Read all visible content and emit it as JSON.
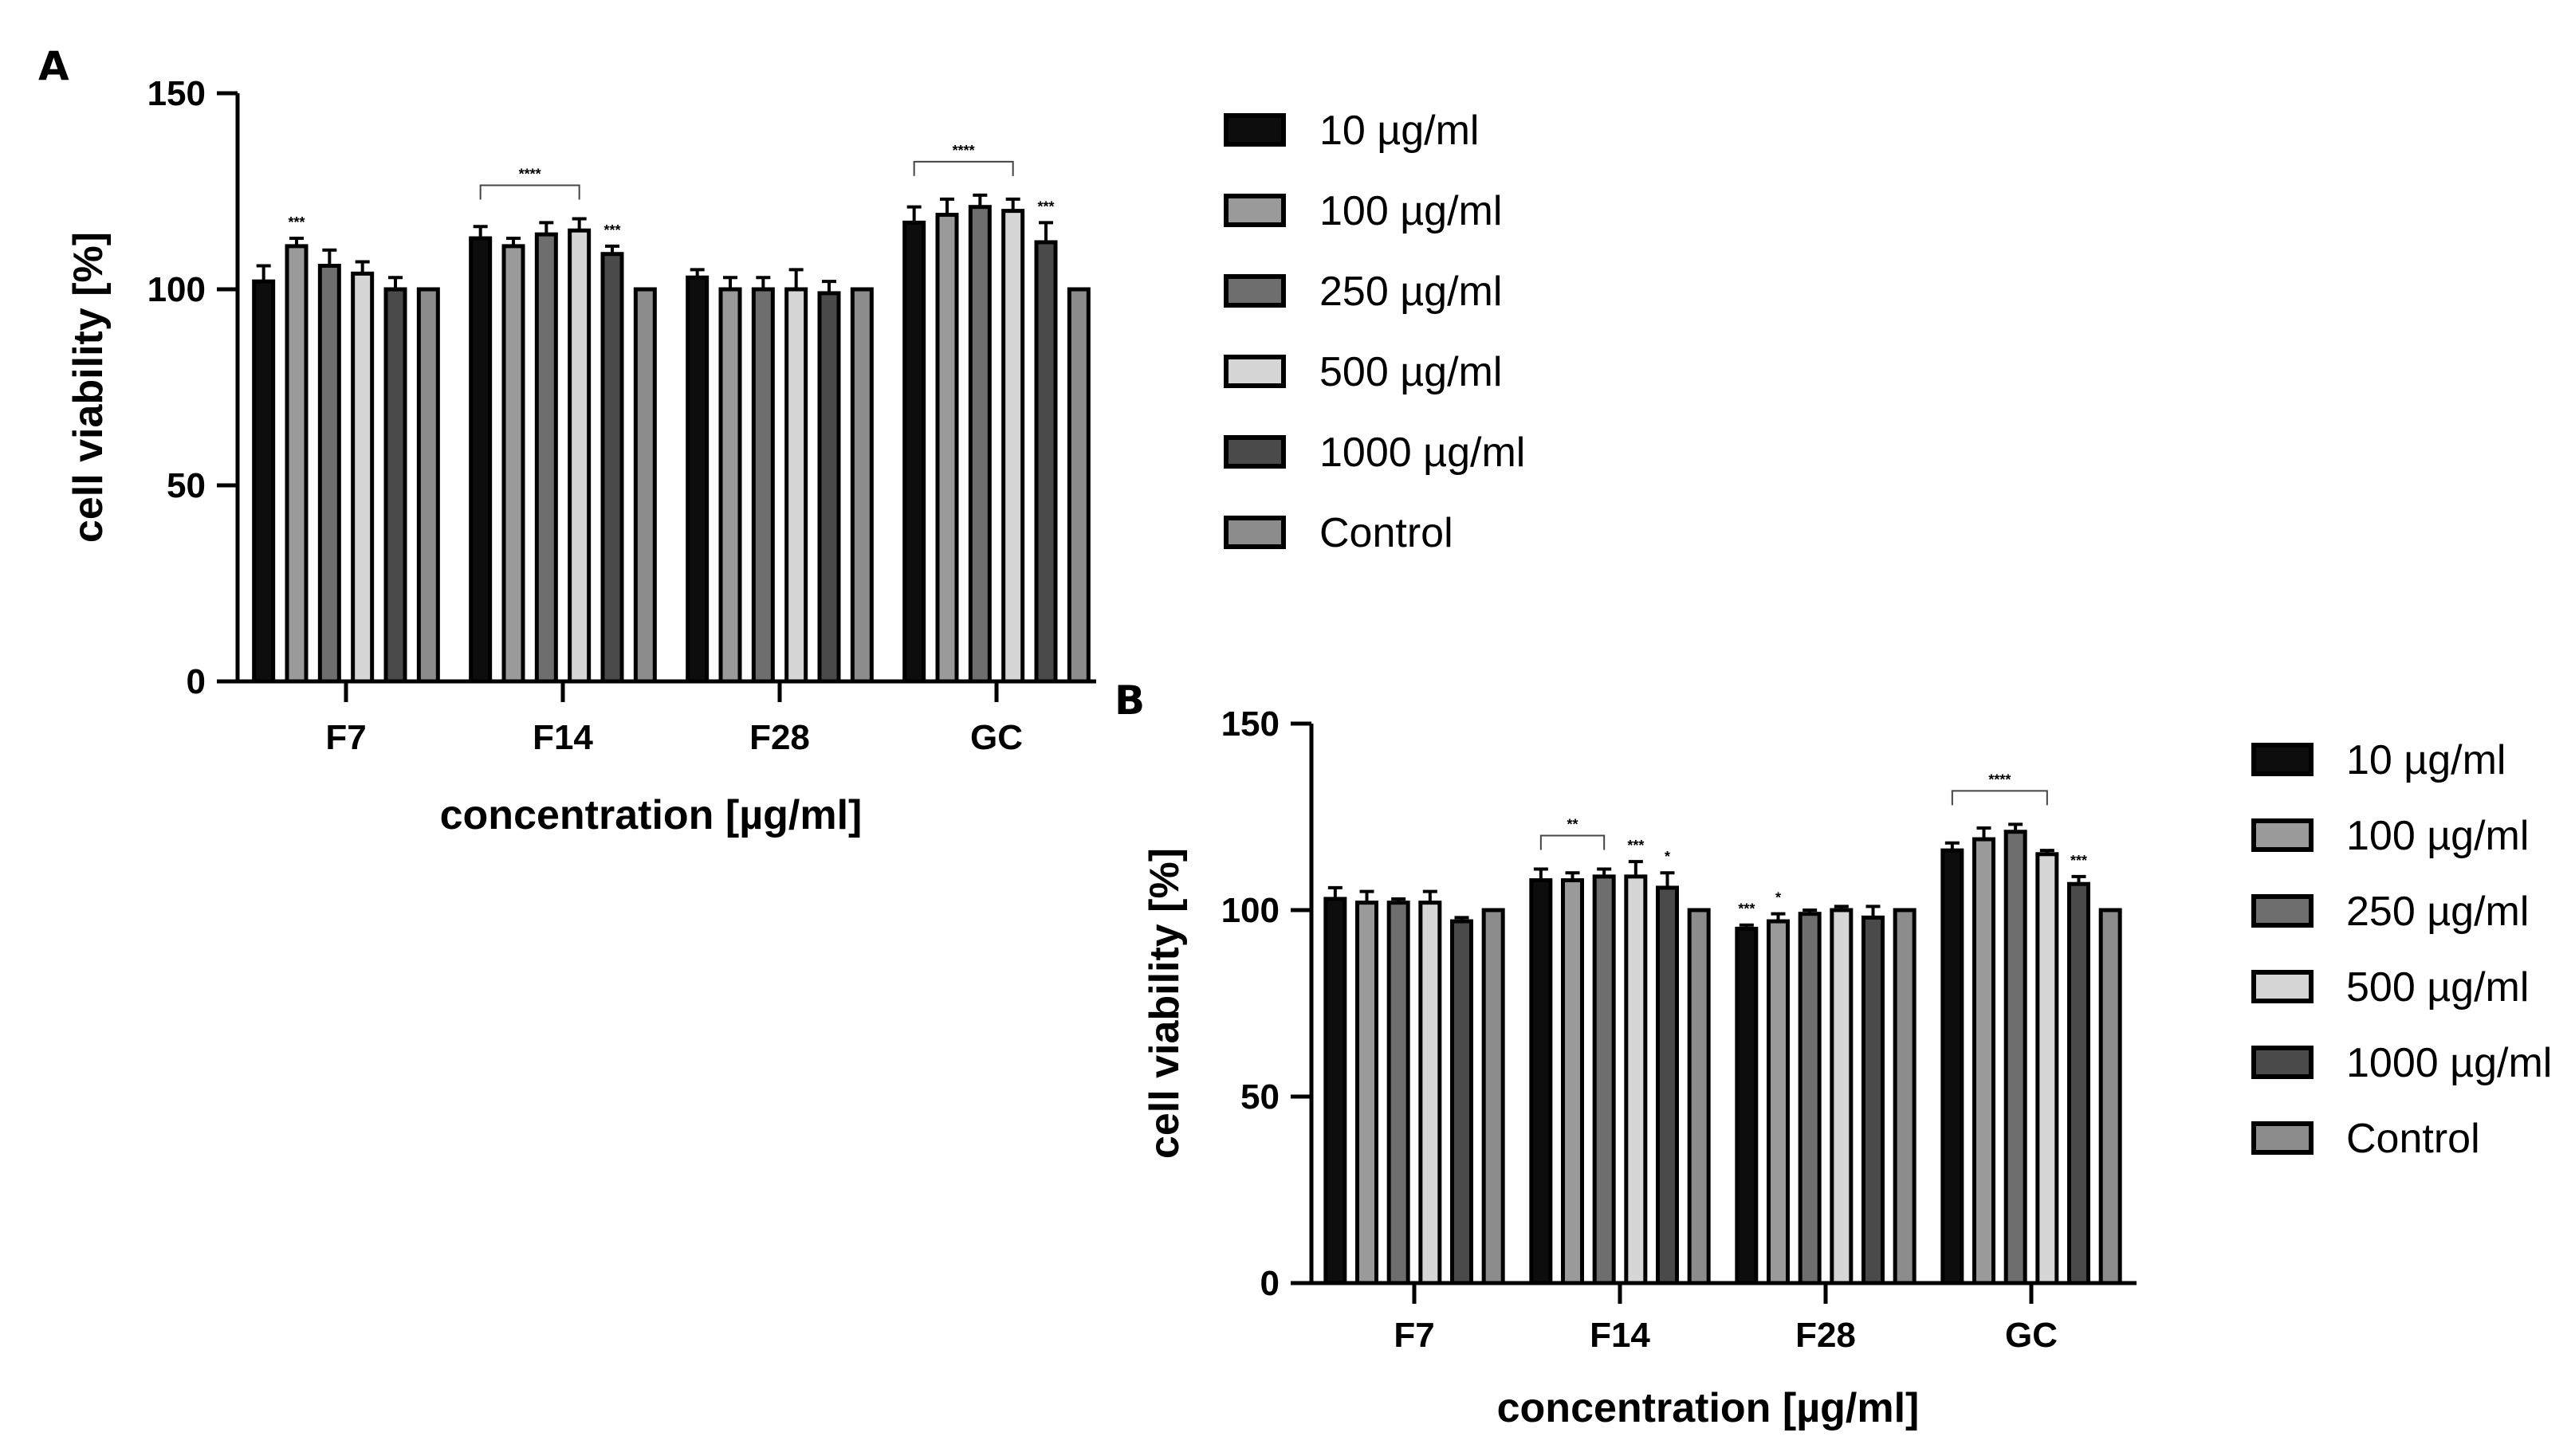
{
  "colors": {
    "10 µg/ml": "#0d0d0d",
    "100 µg/ml": "#9a9a9a",
    "250 µg/ml": "#6e6e6e",
    "500 µg/ml": "#d6d6d6",
    "1000 µg/ml": "#4a4a4a",
    "Control": "#8c8c8c"
  },
  "chart_data": [
    {
      "type": "bar",
      "panel": "A",
      "title": "",
      "xlabel": "concentration [µg/ml]",
      "ylabel": "cell viability [%]",
      "ylim": [
        0,
        150
      ],
      "yticks": [
        "0",
        "50",
        "100",
        "150"
      ],
      "legend_position": "right",
      "categories": [
        "F7",
        "F14",
        "F28",
        "GC"
      ],
      "series": [
        {
          "name": "10 µg/ml",
          "values": [
            102,
            113,
            103,
            117
          ],
          "errors": [
            4,
            3,
            2,
            4
          ]
        },
        {
          "name": "100 µg/ml",
          "values": [
            111,
            111,
            100,
            119
          ],
          "errors": [
            2,
            2,
            3,
            4
          ]
        },
        {
          "name": "250 µg/ml",
          "values": [
            106,
            114,
            100,
            121
          ],
          "errors": [
            4,
            3,
            3,
            3
          ]
        },
        {
          "name": "500 µg/ml",
          "values": [
            104,
            115,
            100,
            120
          ],
          "errors": [
            3,
            3,
            5,
            3
          ]
        },
        {
          "name": "1000 µg/ml",
          "values": [
            100,
            109,
            99,
            112
          ],
          "errors": [
            3,
            2,
            3,
            5
          ]
        },
        {
          "name": "Control",
          "values": [
            100,
            100,
            100,
            100
          ],
          "errors": [
            0,
            0,
            0,
            0
          ]
        }
      ],
      "annotations": [
        {
          "text": "***",
          "category": "F7",
          "series": "100 µg/ml"
        },
        {
          "text": "****",
          "category": "F14",
          "from_series": "10 µg/ml",
          "to_series": "500 µg/ml",
          "bracket": true
        },
        {
          "text": "***",
          "category": "F14",
          "series": "1000 µg/ml"
        },
        {
          "text": "****",
          "category": "GC",
          "from_series": "10 µg/ml",
          "to_series": "500 µg/ml",
          "bracket": true
        },
        {
          "text": "***",
          "category": "GC",
          "series": "1000 µg/ml"
        }
      ]
    },
    {
      "type": "bar",
      "panel": "B",
      "title": "",
      "xlabel": "concentration [µg/ml]",
      "ylabel": "cell viability [%]",
      "ylim": [
        0,
        150
      ],
      "yticks": [
        "0",
        "50",
        "100",
        "150"
      ],
      "legend_position": "right",
      "categories": [
        "F7",
        "F14",
        "F28",
        "GC"
      ],
      "series": [
        {
          "name": "10 µg/ml",
          "values": [
            103,
            108,
            95,
            116
          ],
          "errors": [
            3,
            3,
            1,
            2
          ]
        },
        {
          "name": "100 µg/ml",
          "values": [
            102,
            108,
            97,
            119
          ],
          "errors": [
            3,
            2,
            2,
            3
          ]
        },
        {
          "name": "250 µg/ml",
          "values": [
            102,
            109,
            99,
            121
          ],
          "errors": [
            1,
            2,
            1,
            2
          ]
        },
        {
          "name": "500 µg/ml",
          "values": [
            102,
            109,
            100,
            115
          ],
          "errors": [
            3,
            4,
            1,
            1
          ]
        },
        {
          "name": "1000 µg/ml",
          "values": [
            97,
            106,
            98,
            107
          ],
          "errors": [
            1,
            4,
            3,
            2
          ]
        },
        {
          "name": "Control",
          "values": [
            100,
            100,
            100,
            100
          ],
          "errors": [
            0,
            0,
            0,
            0
          ]
        }
      ],
      "annotations": [
        {
          "text": "**",
          "category": "F14",
          "from_series": "10 µg/ml",
          "to_series": "250 µg/ml",
          "bracket": true
        },
        {
          "text": "***",
          "category": "F14",
          "series": "500 µg/ml"
        },
        {
          "text": "*",
          "category": "F14",
          "series": "1000 µg/ml"
        },
        {
          "text": "***",
          "category": "F28",
          "series": "10 µg/ml"
        },
        {
          "text": "*",
          "category": "F28",
          "series": "100 µg/ml"
        },
        {
          "text": "****",
          "category": "GC",
          "from_series": "10 µg/ml",
          "to_series": "500 µg/ml",
          "bracket": true
        },
        {
          "text": "***",
          "category": "GC",
          "series": "1000 µg/ml"
        }
      ]
    }
  ]
}
